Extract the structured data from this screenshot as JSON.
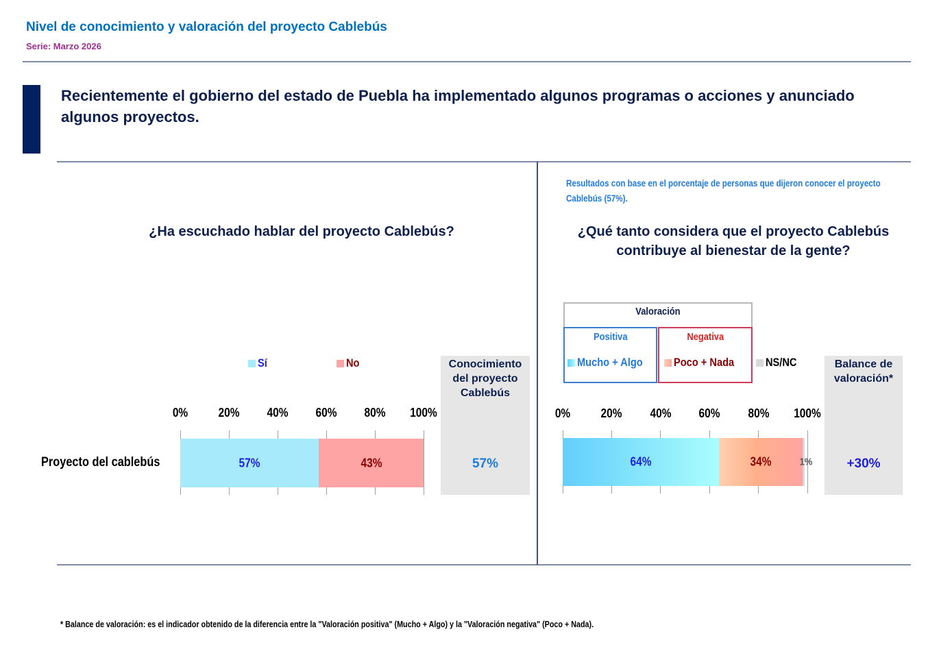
{
  "header": {
    "title": "Nivel de conocimiento y valoración del proyecto Cablebús",
    "subtitle": "Serie: Marzo 2026"
  },
  "question_intro": "Recientemente el gobierno del estado de Puebla ha implementado algunos programas o acciones y anunciado algunos proyectos.",
  "right_note": "Resultados con base en el porcentaje de personas que dijeron conocer el proyecto Cablebús (57%).",
  "footnote": "* Balance de valoración: es el indicador obtenido de la diferencia entre la \"Valoración positiva\" (Mucho + Algo) y la \"Valoración negativa\" (Poco + Nada).",
  "colors": {
    "si": "#A6EAFB",
    "no": "#FFA4A4",
    "positiva_start": "#62CFFB",
    "positiva_end": "#AAFDFD",
    "negativa_start": "#FFD0B0",
    "negativa_mid": "#FFB08A",
    "negativa_end": "#FFA4A4",
    "nsnc": "#D9D9D9",
    "dark_blue": "#0D1F4F",
    "value_blue": "#1F1FE0",
    "value_red": "#8B0000",
    "side_blue": "#1F7BE0"
  },
  "chart_data": [
    {
      "type": "bar",
      "orientation": "horizontal-stacked",
      "title": "¿Ha escuchado hablar del proyecto Cablebús?",
      "categories": [
        "Proyecto del cablebús"
      ],
      "series": [
        {
          "name": "Sí",
          "values": [
            57
          ],
          "label": "57%"
        },
        {
          "name": "No",
          "values": [
            43
          ],
          "label": "43%"
        }
      ],
      "xlim": [
        0,
        100
      ],
      "xticks": [
        "0%",
        "20%",
        "40%",
        "60%",
        "80%",
        "100%"
      ],
      "legend": "top",
      "side_column": {
        "title": "Conocimiento del proyecto Cablebús",
        "value": "57%"
      }
    },
    {
      "type": "bar",
      "orientation": "horizontal-stacked",
      "title": "¿Qué tanto considera que el proyecto Cablebús contribuye al bienestar de la gente?",
      "categories": [
        "Proyecto del cablebús"
      ],
      "legend_group": {
        "title": "Valoración",
        "positive_label": "Positiva",
        "negative_label": "Negativa"
      },
      "series": [
        {
          "name": "Mucho + Algo",
          "values": [
            64
          ],
          "label": "64%"
        },
        {
          "name": "Poco + Nada",
          "values": [
            34
          ],
          "label": "34%"
        },
        {
          "name": "NS/NC",
          "values": [
            1
          ],
          "label": "1%"
        }
      ],
      "xlim": [
        0,
        100
      ],
      "xticks": [
        "0%",
        "20%",
        "40%",
        "60%",
        "80%",
        "100%"
      ],
      "legend": "top",
      "side_column": {
        "title": "Balance de valoración*",
        "value": "+30%"
      }
    }
  ]
}
